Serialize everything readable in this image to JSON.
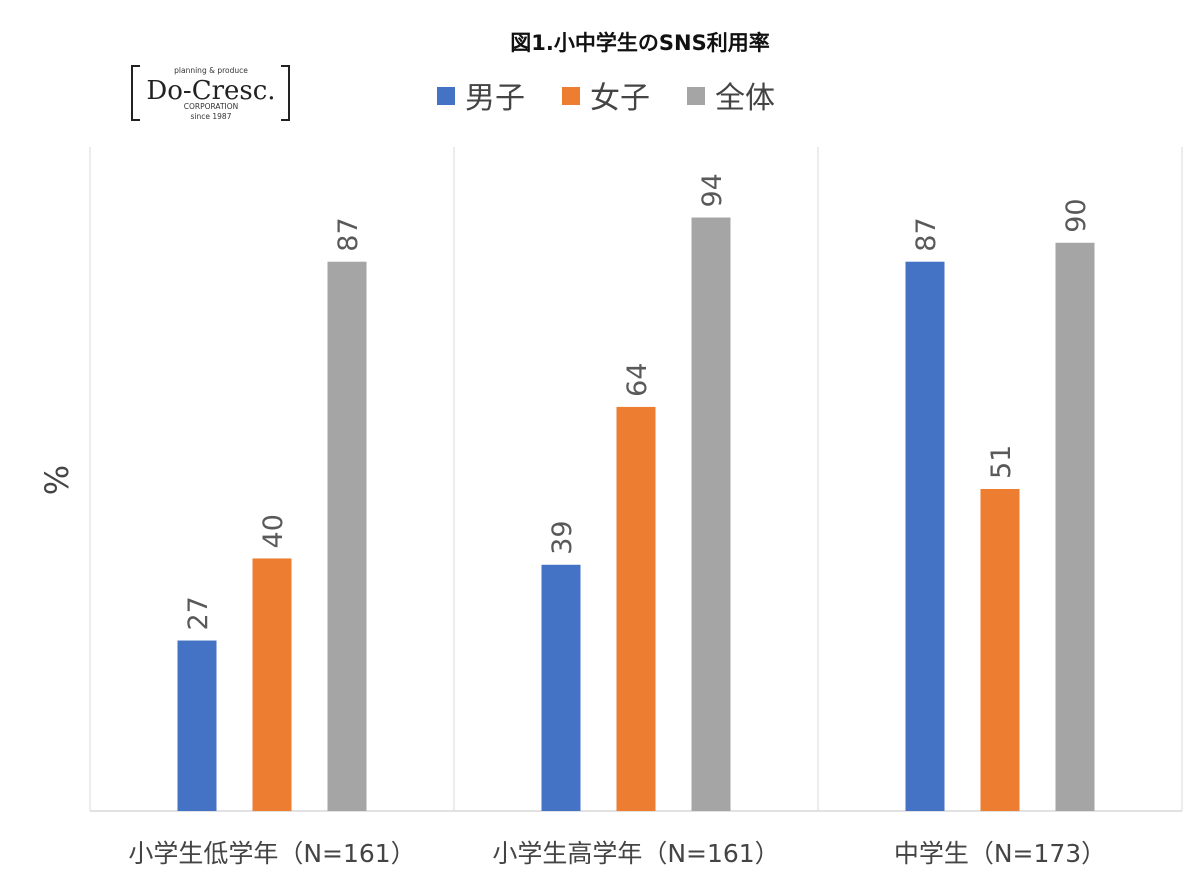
{
  "logo": {
    "top": "planning & produce",
    "main": "Do-Cresc.",
    "sub": "CORPORATION",
    "since": "since 1987"
  },
  "chart_data": {
    "type": "bar",
    "title": "図1.小中学生のSNS利用率",
    "ylabel": "%",
    "xlabel": "",
    "ylim": [
      0,
      100
    ],
    "grid": false,
    "legend_position": "top-center",
    "categories": [
      "小学生低学年（N=161）",
      "小学生高学年（N=161）",
      "中学生（N=173）"
    ],
    "series": [
      {
        "name": "男子",
        "color": "#4472C4",
        "values": [
          27,
          39,
          87
        ]
      },
      {
        "name": "女子",
        "color": "#ED7D31",
        "values": [
          40,
          64,
          51
        ]
      },
      {
        "name": "全体",
        "color": "#A5A5A5",
        "values": [
          87,
          94,
          90
        ]
      }
    ]
  }
}
